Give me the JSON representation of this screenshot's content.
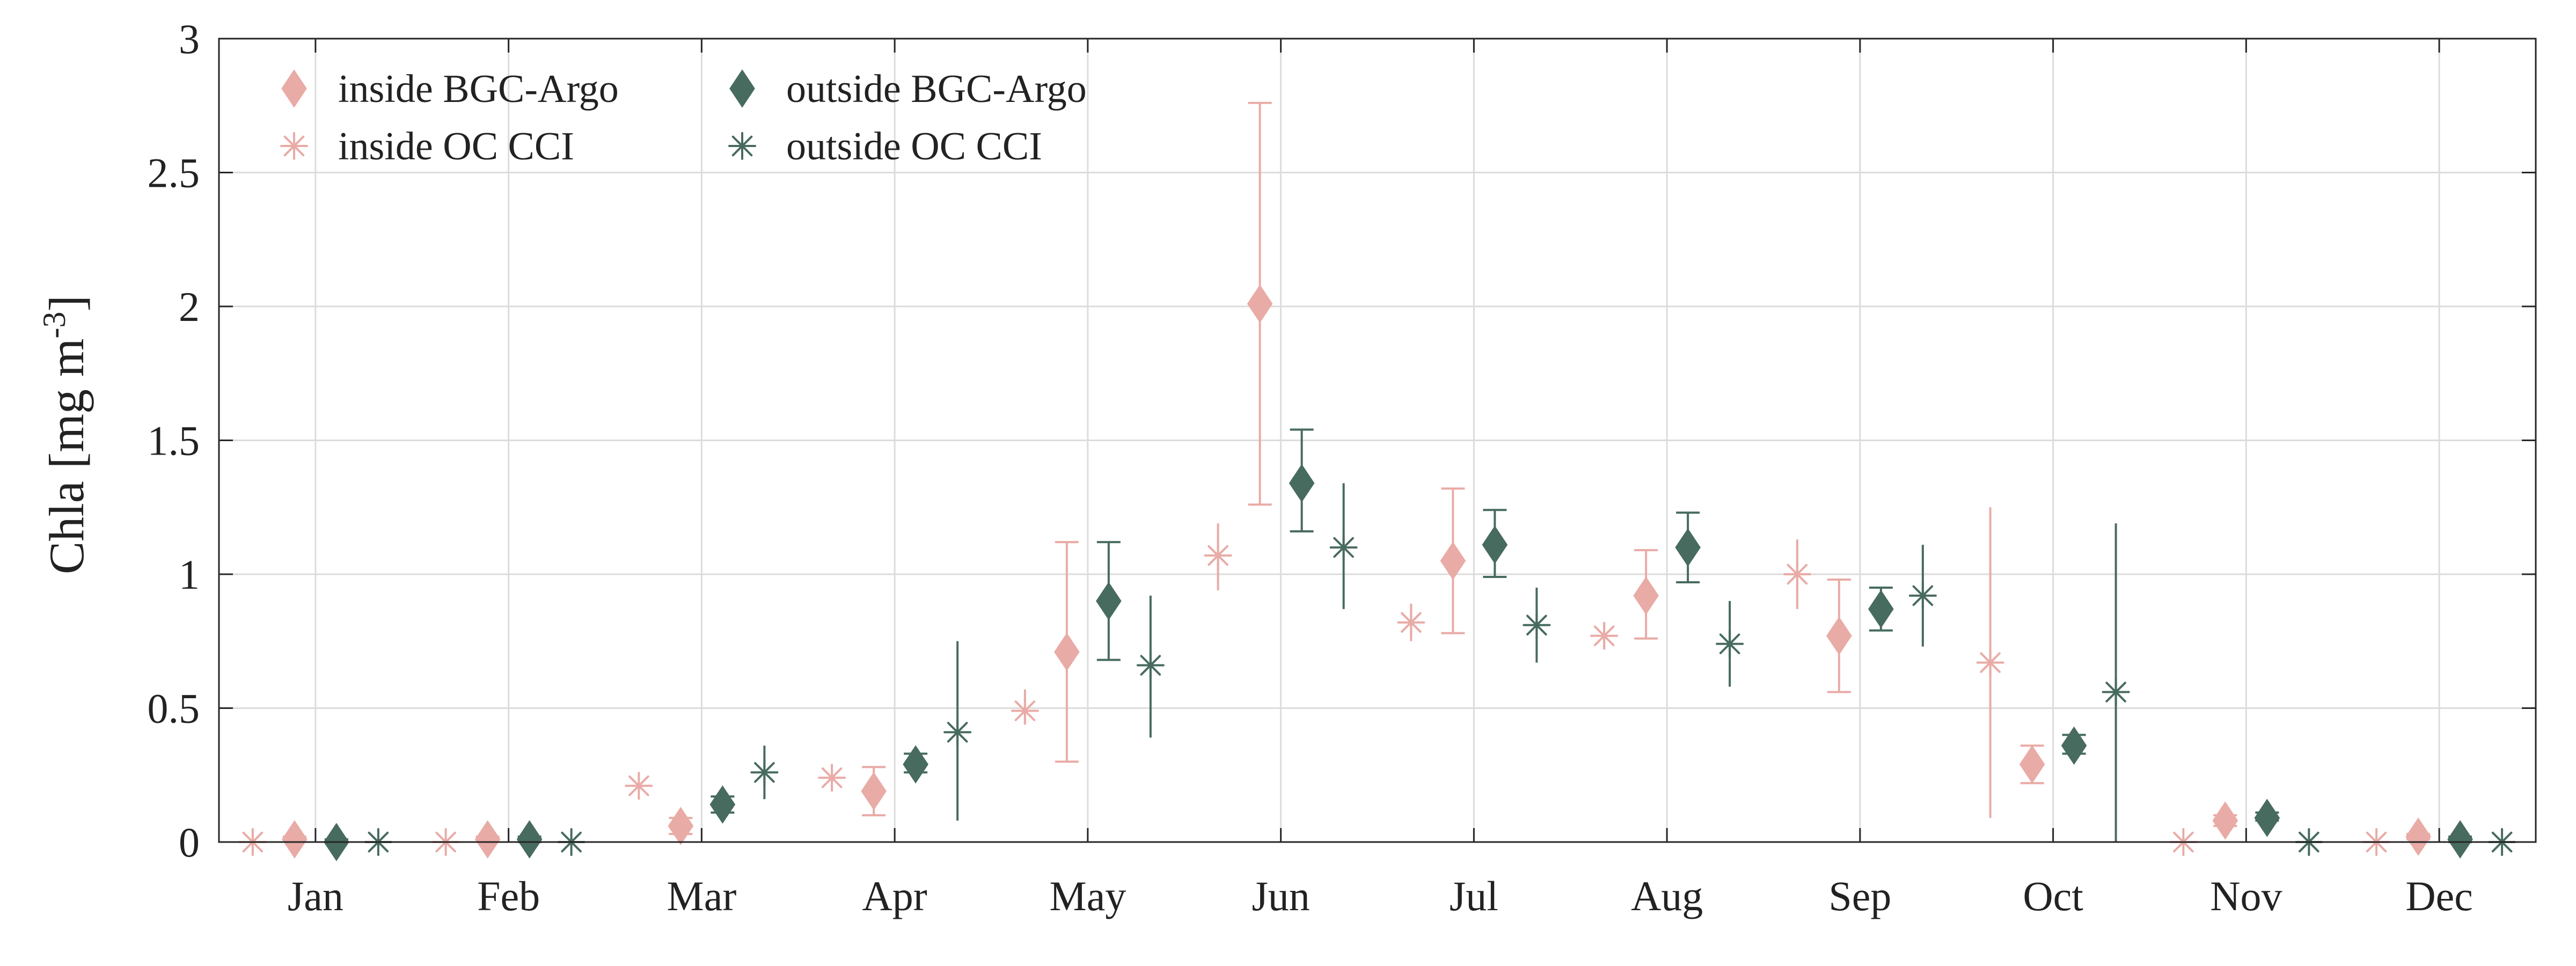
{
  "chart_data": {
    "type": "scatter",
    "categories": [
      "Jan",
      "Feb",
      "Mar",
      "Apr",
      "May",
      "Jun",
      "Jul",
      "Aug",
      "Sep",
      "Oct",
      "Nov",
      "Dec"
    ],
    "ylabel_main": "Chla [mg m",
    "ylabel_sup": "-3",
    "ylabel_close": "]",
    "ylim": [
      0,
      3
    ],
    "yticks": [
      0,
      0.5,
      1,
      1.5,
      2,
      2.5,
      3
    ],
    "ytick_labels": [
      "0",
      "0.5",
      "1",
      "1.5",
      "2",
      "2.5",
      "3"
    ],
    "grid": true,
    "legend_position": "top-left",
    "series": [
      {
        "name": "inside BGC-Argo",
        "marker": "diamond",
        "color": "#e9aba6",
        "values": [
          0.01,
          0.01,
          0.06,
          0.19,
          0.71,
          2.01,
          1.05,
          0.92,
          0.77,
          0.29,
          0.08,
          0.02
        ],
        "err_low": [
          0.01,
          0.01,
          0.03,
          0.1,
          0.3,
          1.26,
          0.78,
          0.76,
          0.56,
          0.22,
          0.06,
          0.01
        ],
        "err_high": [
          0.02,
          0.02,
          0.09,
          0.28,
          1.12,
          2.76,
          1.32,
          1.09,
          0.98,
          0.36,
          0.1,
          0.03
        ]
      },
      {
        "name": "inside OC CCI",
        "marker": "asterisk",
        "color": "#e9aba6",
        "values": [
          0.0,
          0.0,
          0.21,
          0.24,
          0.49,
          1.07,
          0.82,
          0.77,
          1.0,
          0.67,
          0.0,
          0.0
        ],
        "err_low": [
          0.0,
          0.0,
          0.21,
          0.24,
          0.44,
          0.94,
          0.75,
          0.72,
          0.87,
          0.09,
          0.0,
          0.0
        ],
        "err_high": [
          0.0,
          0.0,
          0.21,
          0.24,
          0.57,
          1.19,
          0.89,
          0.82,
          1.13,
          1.25,
          0.0,
          0.0
        ]
      },
      {
        "name": "outside BGC-Argo",
        "marker": "diamond",
        "color": "#476b5f",
        "values": [
          0.0,
          0.01,
          0.14,
          0.29,
          0.9,
          1.34,
          1.11,
          1.1,
          0.87,
          0.36,
          0.09,
          0.01
        ],
        "err_low": [
          0.0,
          0.0,
          0.11,
          0.26,
          0.68,
          1.16,
          0.99,
          0.97,
          0.79,
          0.33,
          0.08,
          0.0
        ],
        "err_high": [
          0.01,
          0.02,
          0.17,
          0.33,
          1.12,
          1.54,
          1.24,
          1.23,
          0.95,
          0.4,
          0.11,
          0.02
        ]
      },
      {
        "name": "outside OC CCI",
        "marker": "asterisk",
        "color": "#476b5f",
        "values": [
          0.0,
          0.0,
          0.26,
          0.41,
          0.66,
          1.1,
          0.81,
          0.74,
          0.92,
          0.56,
          0.0,
          0.0
        ],
        "err_low": [
          0.0,
          0.0,
          0.16,
          0.08,
          0.39,
          0.87,
          0.67,
          0.58,
          0.73,
          0.0,
          0.0,
          0.0
        ],
        "err_high": [
          0.0,
          0.0,
          0.36,
          0.75,
          0.92,
          1.34,
          0.95,
          0.9,
          1.11,
          1.19,
          0.0,
          0.0
        ]
      }
    ]
  }
}
